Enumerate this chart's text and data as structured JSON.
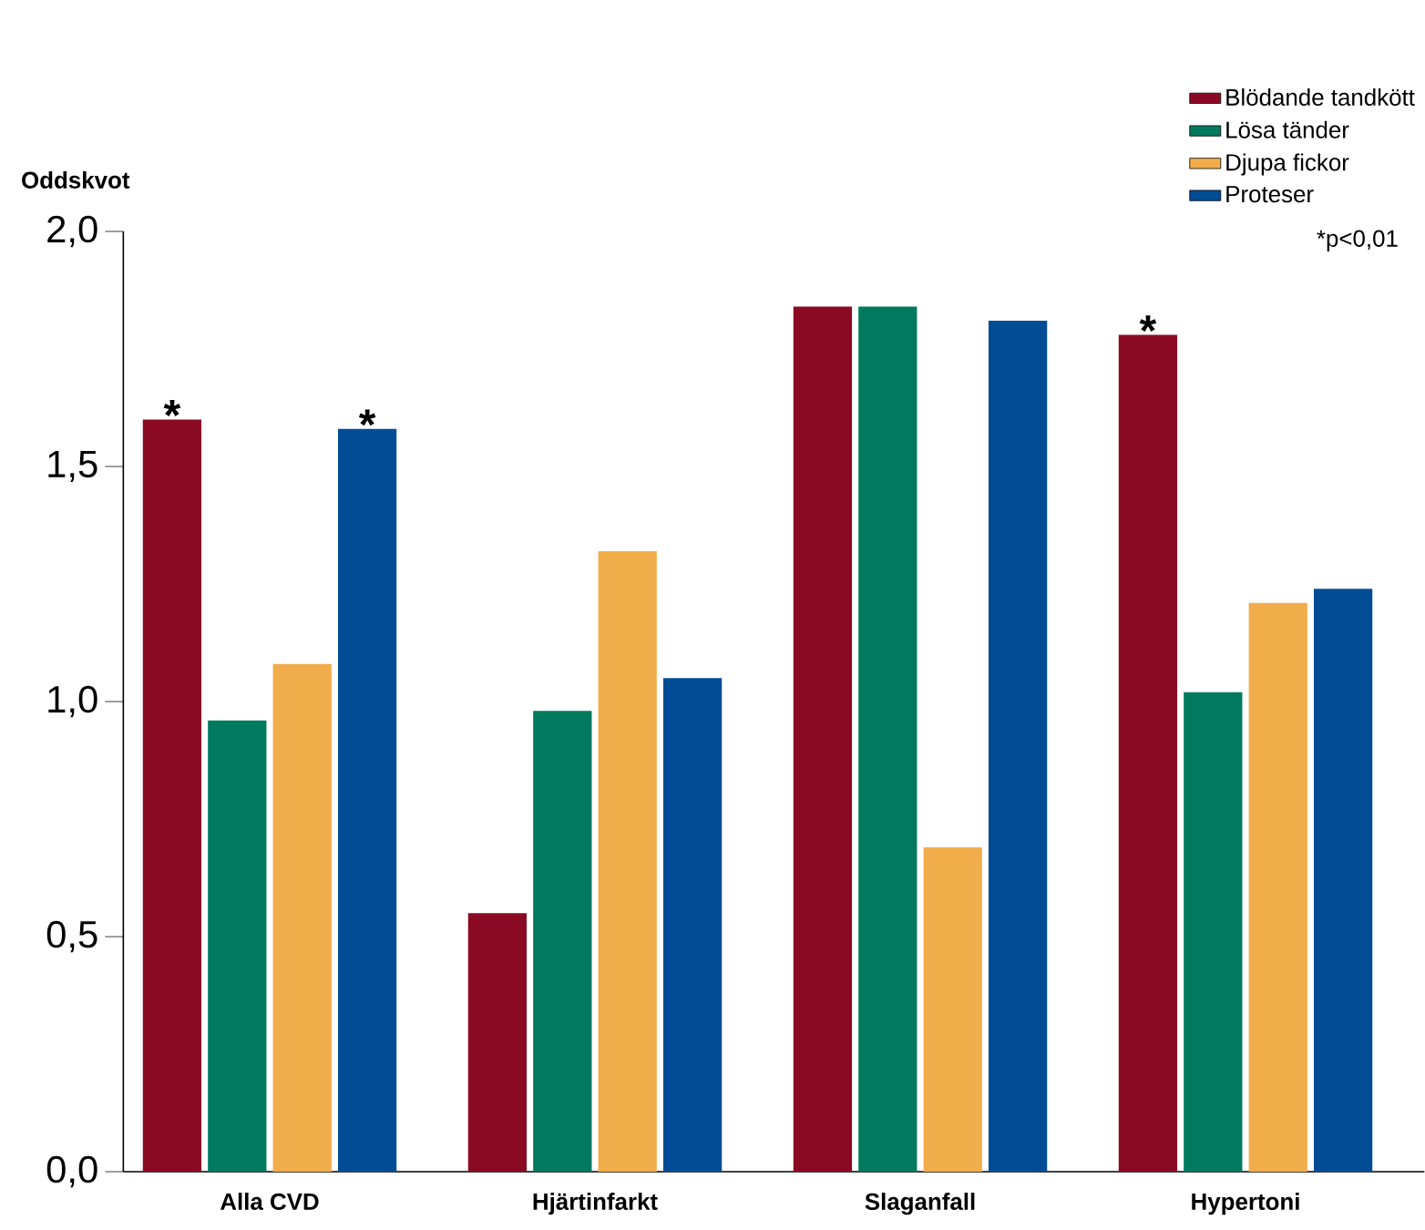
{
  "chart_data": {
    "type": "bar",
    "ylabel": "Oddskvot",
    "categories": [
      "Alla CVD",
      "Hjärtinfarkt",
      "Slaganfall",
      "Hypertoni"
    ],
    "series": [
      {
        "name": "Blödande tandkött",
        "color": "#8b0a23",
        "values": [
          1.6,
          0.55,
          1.84,
          1.78
        ],
        "value_labels": [
          "*",
          null,
          null,
          "*"
        ]
      },
      {
        "name": "Lösa tänder",
        "color": "#007a5e",
        "values": [
          0.96,
          0.98,
          1.84,
          1.02
        ]
      },
      {
        "name": "Djupa fickor",
        "color": "#f2ad4b",
        "values": [
          1.08,
          1.32,
          0.69,
          1.21
        ]
      },
      {
        "name": "Proteser",
        "color": "#004d96",
        "values": [
          1.58,
          1.05,
          1.81,
          1.24
        ],
        "value_labels": [
          "*",
          null,
          null,
          null
        ]
      }
    ],
    "ylim": [
      0,
      2.0
    ],
    "yticks": [
      {
        "value": 0,
        "label": "0,0"
      },
      {
        "value": 0.5,
        "label": "0,5"
      },
      {
        "value": 1.0,
        "label": "1,0"
      },
      {
        "value": 1.5,
        "label": "1,5"
      },
      {
        "value": 2.0,
        "label": "2,0"
      }
    ],
    "grid": false,
    "legend": "top right",
    "annotations": [
      "*p<0,01"
    ]
  }
}
